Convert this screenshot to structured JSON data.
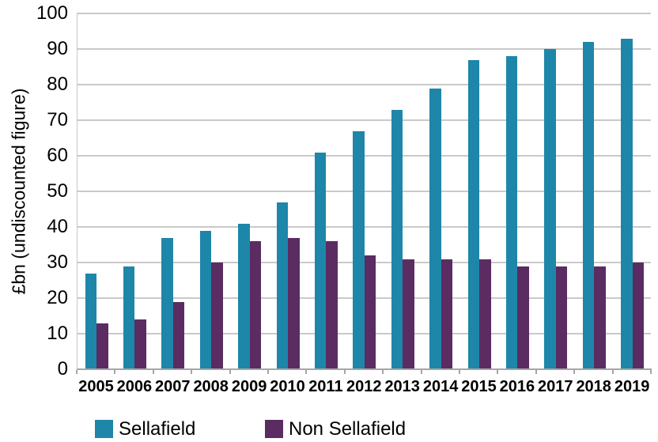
{
  "chart_data": {
    "type": "bar",
    "title": "",
    "xlabel": "",
    "ylabel": "£bn (undiscounted figure)",
    "categories": [
      "2005",
      "2006",
      "2007",
      "2008",
      "2009",
      "2010",
      "2011",
      "2012",
      "2013",
      "2014",
      "2015",
      "2016",
      "2017",
      "2018",
      "2019"
    ],
    "series": [
      {
        "name": "Sellafield",
        "color": "#1e86a8",
        "values": [
          27,
          29,
          37,
          39,
          41,
          47,
          61,
          67,
          73,
          79,
          87,
          88,
          90,
          92,
          93
        ]
      },
      {
        "name": "Non Sellafield",
        "color": "#5a2c62",
        "values": [
          13,
          14,
          19,
          30,
          36,
          37,
          36,
          32,
          31,
          31,
          31,
          29,
          29,
          29,
          30
        ]
      }
    ],
    "ylim": [
      0,
      100
    ],
    "yticks": [
      0,
      10,
      20,
      30,
      40,
      50,
      60,
      70,
      80,
      90,
      100
    ],
    "grid": "horizontal",
    "legend_position": "bottom-left"
  },
  "colors": {
    "background": "#ffffff",
    "gridline": "#c9c9c9",
    "axis_line": "#a6a6a6",
    "text": "#000000"
  }
}
